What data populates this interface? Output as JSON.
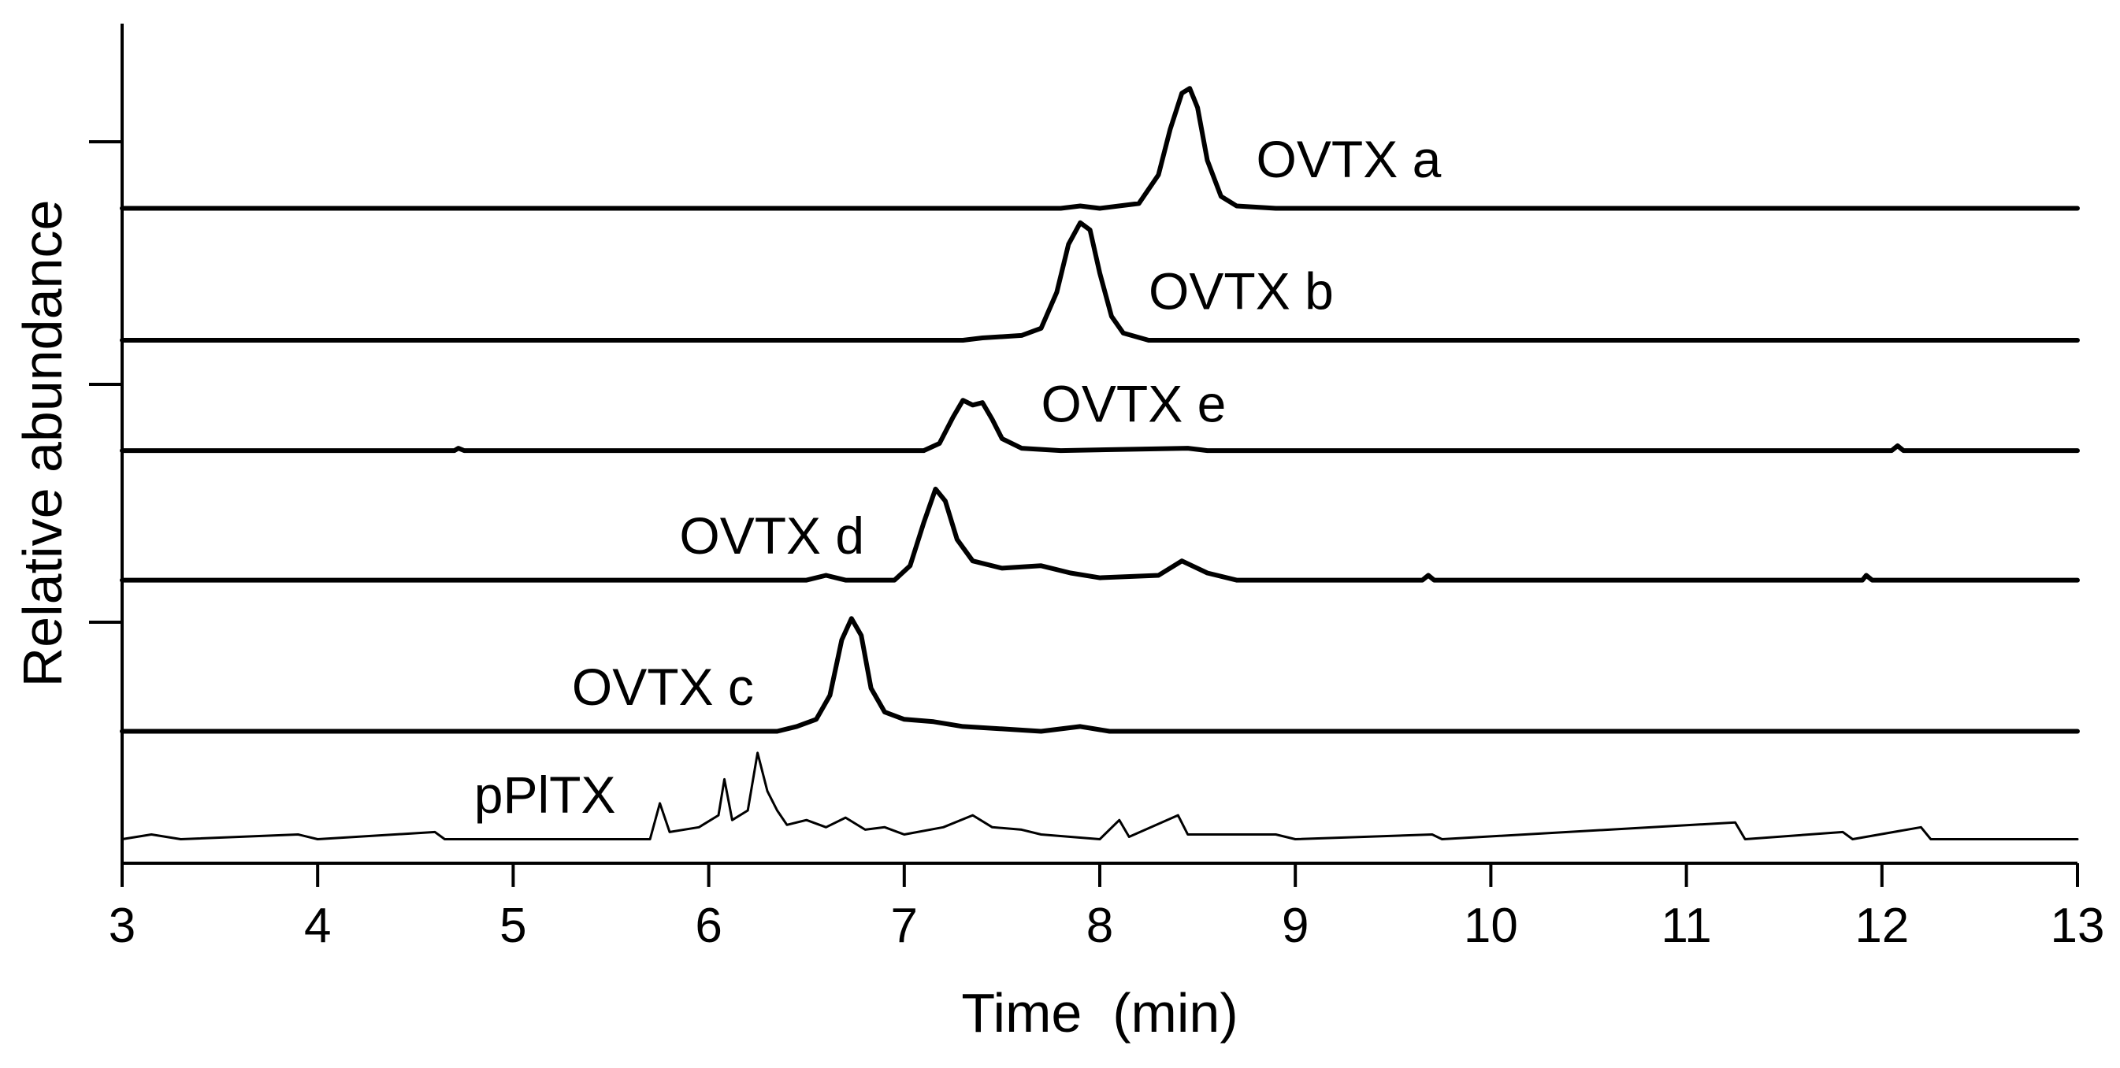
{
  "chart_data": {
    "type": "line",
    "title": "",
    "xlabel": "Time  (min)",
    "ylabel": "Relative abundance",
    "xlim": [
      3,
      13
    ],
    "xticks": [
      3,
      4,
      5,
      6,
      7,
      8,
      9,
      10,
      11,
      12,
      13
    ],
    "tick_labels": [
      "3",
      "4",
      "5",
      "6",
      "7",
      "8",
      "9",
      "10",
      "11",
      "12",
      "13"
    ],
    "grid": false,
    "legend": "none (inline trace labels)",
    "series": [
      {
        "name": "OVTX a",
        "offset": 2.73,
        "peak_height": 0.5,
        "points": [
          [
            3.0,
            0
          ],
          [
            7.8,
            0
          ],
          [
            7.9,
            0.01
          ],
          [
            8.0,
            0
          ],
          [
            8.2,
            0.02
          ],
          [
            8.3,
            0.14
          ],
          [
            8.36,
            0.33
          ],
          [
            8.42,
            0.48
          ],
          [
            8.46,
            0.5
          ],
          [
            8.5,
            0.42
          ],
          [
            8.55,
            0.2
          ],
          [
            8.62,
            0.05
          ],
          [
            8.7,
            0.01
          ],
          [
            8.9,
            0
          ],
          [
            13.0,
            0
          ]
        ]
      },
      {
        "name": "OVTX b",
        "offset": 2.18,
        "peak_height": 0.5,
        "points": [
          [
            3.0,
            0
          ],
          [
            7.3,
            0
          ],
          [
            7.4,
            0.01
          ],
          [
            7.6,
            0.02
          ],
          [
            7.7,
            0.05
          ],
          [
            7.78,
            0.2
          ],
          [
            7.84,
            0.4
          ],
          [
            7.9,
            0.49
          ],
          [
            7.95,
            0.46
          ],
          [
            8.0,
            0.28
          ],
          [
            8.06,
            0.1
          ],
          [
            8.12,
            0.03
          ],
          [
            8.25,
            0
          ],
          [
            13.0,
            0
          ]
        ]
      },
      {
        "name": "OVTX e",
        "offset": 1.72,
        "peak_height": 0.22,
        "points": [
          [
            3.0,
            0
          ],
          [
            4.7,
            0
          ],
          [
            4.72,
            0.01
          ],
          [
            4.75,
            0
          ],
          [
            7.1,
            0
          ],
          [
            7.18,
            0.03
          ],
          [
            7.25,
            0.14
          ],
          [
            7.3,
            0.21
          ],
          [
            7.35,
            0.19
          ],
          [
            7.4,
            0.2
          ],
          [
            7.45,
            0.13
          ],
          [
            7.5,
            0.05
          ],
          [
            7.6,
            0.01
          ],
          [
            7.8,
            0
          ],
          [
            8.45,
            0.01
          ],
          [
            8.55,
            0
          ],
          [
            12.05,
            0
          ],
          [
            12.08,
            0.02
          ],
          [
            12.11,
            0
          ],
          [
            13.0,
            0
          ]
        ]
      },
      {
        "name": "OVTX d",
        "offset": 1.18,
        "peak_height": 0.4,
        "points": [
          [
            3.0,
            0
          ],
          [
            6.5,
            0
          ],
          [
            6.6,
            0.02
          ],
          [
            6.7,
            0
          ],
          [
            6.95,
            0
          ],
          [
            7.03,
            0.06
          ],
          [
            7.1,
            0.24
          ],
          [
            7.16,
            0.38
          ],
          [
            7.21,
            0.33
          ],
          [
            7.27,
            0.17
          ],
          [
            7.35,
            0.08
          ],
          [
            7.5,
            0.05
          ],
          [
            7.7,
            0.06
          ],
          [
            7.85,
            0.03
          ],
          [
            8.0,
            0.01
          ],
          [
            8.3,
            0.02
          ],
          [
            8.42,
            0.08
          ],
          [
            8.55,
            0.03
          ],
          [
            8.7,
            0
          ],
          [
            9.65,
            0
          ],
          [
            9.68,
            0.02
          ],
          [
            9.71,
            0
          ],
          [
            11.9,
            0
          ],
          [
            11.92,
            0.02
          ],
          [
            11.95,
            0
          ],
          [
            13.0,
            0
          ]
        ]
      },
      {
        "name": "OVTX c",
        "offset": 0.55,
        "peak_height": 0.48,
        "points": [
          [
            3.0,
            0
          ],
          [
            6.35,
            0
          ],
          [
            6.45,
            0.02
          ],
          [
            6.55,
            0.05
          ],
          [
            6.62,
            0.15
          ],
          [
            6.68,
            0.38
          ],
          [
            6.73,
            0.47
          ],
          [
            6.78,
            0.4
          ],
          [
            6.83,
            0.18
          ],
          [
            6.9,
            0.08
          ],
          [
            7.0,
            0.05
          ],
          [
            7.15,
            0.04
          ],
          [
            7.3,
            0.02
          ],
          [
            7.5,
            0.01
          ],
          [
            7.7,
            0
          ],
          [
            7.9,
            0.02
          ],
          [
            8.05,
            0
          ],
          [
            13.0,
            0
          ]
        ]
      },
      {
        "name": "pPlTX",
        "offset": 0.1,
        "peak_height": 0.36,
        "points": [
          [
            3.0,
            0
          ],
          [
            3.15,
            0.02
          ],
          [
            3.3,
            0
          ],
          [
            3.9,
            0.02
          ],
          [
            4.0,
            0
          ],
          [
            4.6,
            0.03
          ],
          [
            4.65,
            0
          ],
          [
            5.7,
            0
          ],
          [
            5.75,
            0.15
          ],
          [
            5.8,
            0.03
          ],
          [
            5.95,
            0.05
          ],
          [
            6.05,
            0.1
          ],
          [
            6.08,
            0.25
          ],
          [
            6.12,
            0.08
          ],
          [
            6.2,
            0.12
          ],
          [
            6.25,
            0.36
          ],
          [
            6.3,
            0.2
          ],
          [
            6.35,
            0.12
          ],
          [
            6.4,
            0.06
          ],
          [
            6.5,
            0.08
          ],
          [
            6.6,
            0.05
          ],
          [
            6.7,
            0.09
          ],
          [
            6.8,
            0.04
          ],
          [
            6.9,
            0.05
          ],
          [
            7.0,
            0.02
          ],
          [
            7.2,
            0.05
          ],
          [
            7.35,
            0.1
          ],
          [
            7.45,
            0.05
          ],
          [
            7.6,
            0.04
          ],
          [
            7.7,
            0.02
          ],
          [
            8.0,
            0
          ],
          [
            8.1,
            0.08
          ],
          [
            8.15,
            0.01
          ],
          [
            8.4,
            0.1
          ],
          [
            8.45,
            0.02
          ],
          [
            8.9,
            0.02
          ],
          [
            9.0,
            0
          ],
          [
            9.7,
            0.02
          ],
          [
            9.75,
            0
          ],
          [
            11.25,
            0.07
          ],
          [
            11.3,
            0
          ],
          [
            11.8,
            0.03
          ],
          [
            11.85,
            0
          ],
          [
            12.2,
            0.05
          ],
          [
            12.25,
            0
          ],
          [
            13.0,
            0
          ]
        ]
      }
    ],
    "label_positions": {
      "OVTX a": [
        8.8,
        2.86
      ],
      "OVTX b": [
        8.25,
        2.31
      ],
      "OVTX e": [
        7.7,
        1.84
      ],
      "OVTX d": [
        5.85,
        1.29
      ],
      "OVTX c": [
        5.3,
        0.66
      ],
      "pPlTX": [
        4.8,
        0.21
      ]
    },
    "ylim": [
      0,
      3.5
    ]
  }
}
